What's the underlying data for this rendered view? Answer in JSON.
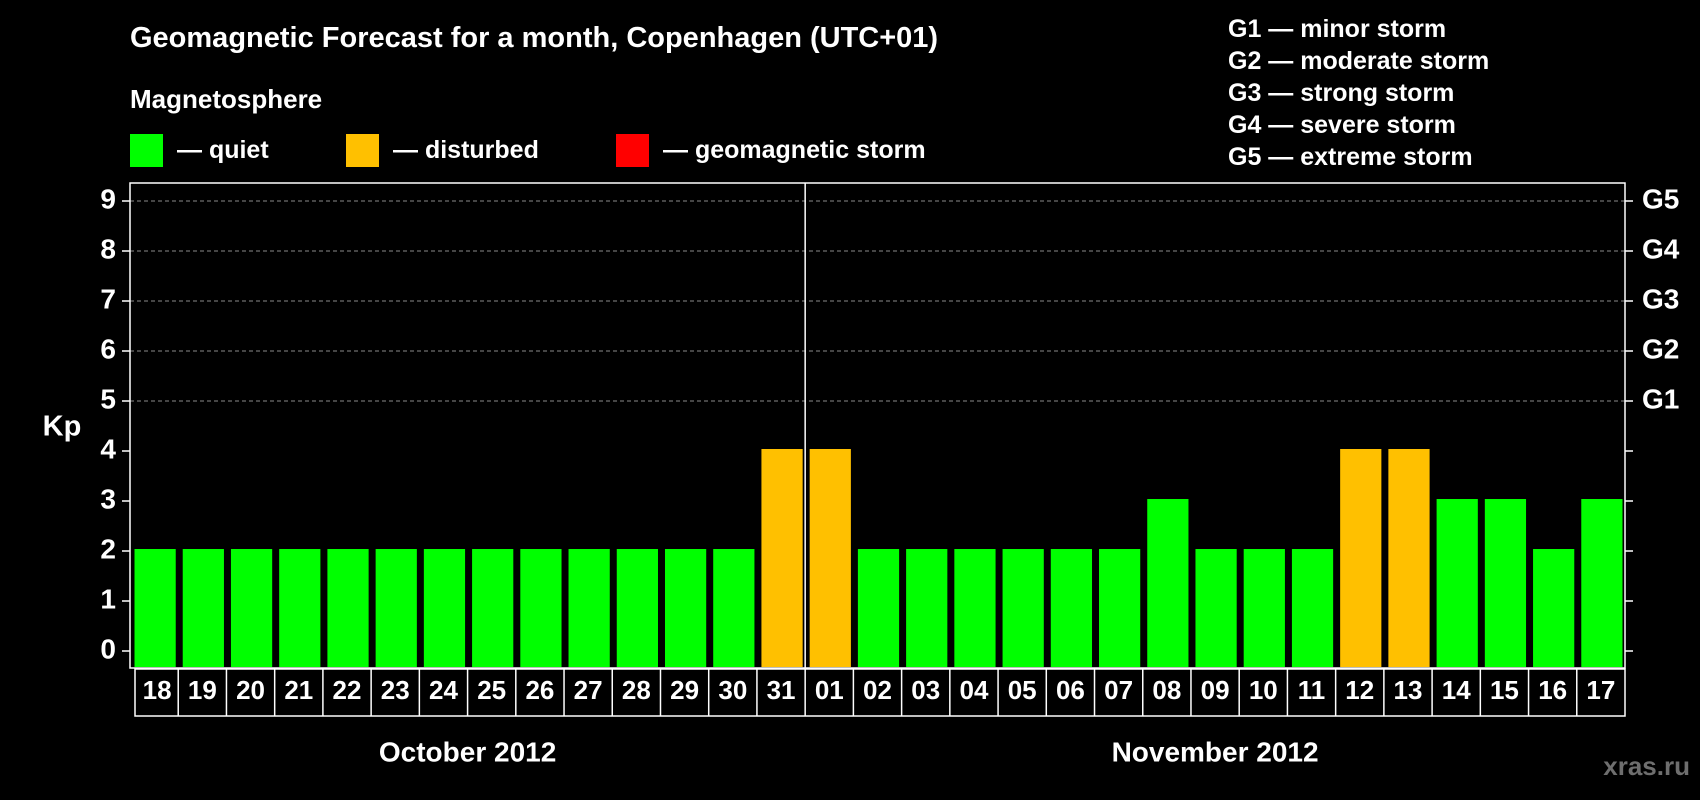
{
  "title": "Geomagnetic Forecast for a month, Copenhagen (UTC+01)",
  "subtitle": "Magnetosphere",
  "legend": [
    {
      "color": "#00ff00",
      "label": "— quiet"
    },
    {
      "color": "#ffc000",
      "label": "— disturbed"
    },
    {
      "color": "#ff0000",
      "label": "— geomagnetic storm"
    }
  ],
  "storm_scale": [
    "G1 — minor storm",
    "G2 — moderate storm",
    "G3 — strong storm",
    "G4 — severe storm",
    "G5 — extreme storm"
  ],
  "watermark": "xras.ru",
  "chart_data": {
    "type": "bar",
    "ylabel": "Kp",
    "ylim": [
      0,
      9
    ],
    "yticks": [
      "0",
      "1",
      "2",
      "3",
      "4",
      "5",
      "6",
      "7",
      "8",
      "9"
    ],
    "right_ticks": [
      {
        "value": 5,
        "label": "G1"
      },
      {
        "value": 6,
        "label": "G2"
      },
      {
        "value": 7,
        "label": "G3"
      },
      {
        "value": 8,
        "label": "G4"
      },
      {
        "value": 9,
        "label": "G5"
      }
    ],
    "grid": true,
    "categories": [
      "18",
      "19",
      "20",
      "21",
      "22",
      "23",
      "24",
      "25",
      "26",
      "27",
      "28",
      "29",
      "30",
      "31",
      "01",
      "02",
      "03",
      "04",
      "05",
      "06",
      "07",
      "08",
      "09",
      "10",
      "11",
      "12",
      "13",
      "14",
      "15",
      "16",
      "17"
    ],
    "values": [
      2,
      2,
      2,
      2,
      2,
      2,
      2,
      2,
      2,
      2,
      2,
      2,
      2,
      4,
      4,
      2,
      2,
      2,
      2,
      2,
      2,
      3,
      2,
      2,
      2,
      4,
      4,
      3,
      3,
      2,
      3
    ],
    "months": [
      {
        "label": "October 2012",
        "from": 0,
        "to": 13
      },
      {
        "label": "November 2012",
        "from": 14,
        "to": 30
      }
    ],
    "colors": {
      "quiet": "#00ff00",
      "disturbed": "#ffc000",
      "storm": "#ff0000"
    }
  }
}
